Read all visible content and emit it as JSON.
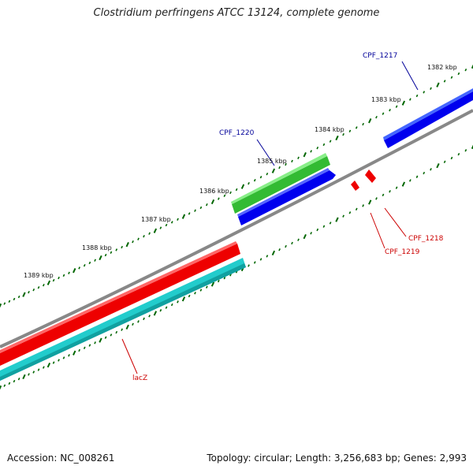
{
  "title": "Clostridium perfringens ATCC 13124, complete genome",
  "footer": {
    "accession": "Accession: NC_008261",
    "topology": "Topology: circular; Length: 3,256,683 bp; Genes: 2,993"
  },
  "colors": {
    "backbone": "#888888",
    "tick": "#006600",
    "label_forward": "#000099",
    "label_reverse": "#cc0000",
    "gene_green": "#33bb33",
    "gene_blue": "#0000ee",
    "gene_red": "#ee0000",
    "gene_cyan": "#22cccc"
  },
  "scale_labels": [
    "1382 kbp",
    "1383 kbp",
    "1384 kbp",
    "1385 kbp",
    "1386 kbp",
    "1387 kbp",
    "1388 kbp",
    "1389 kbp"
  ],
  "gene_labels": [
    {
      "text": "CPF_1217",
      "strand": "forward"
    },
    {
      "text": "CPF_1220",
      "strand": "forward"
    },
    {
      "text": "CPF_1218",
      "strand": "reverse"
    },
    {
      "text": "CPF_1219",
      "strand": "reverse"
    },
    {
      "text": "lacZ",
      "strand": "reverse"
    }
  ]
}
